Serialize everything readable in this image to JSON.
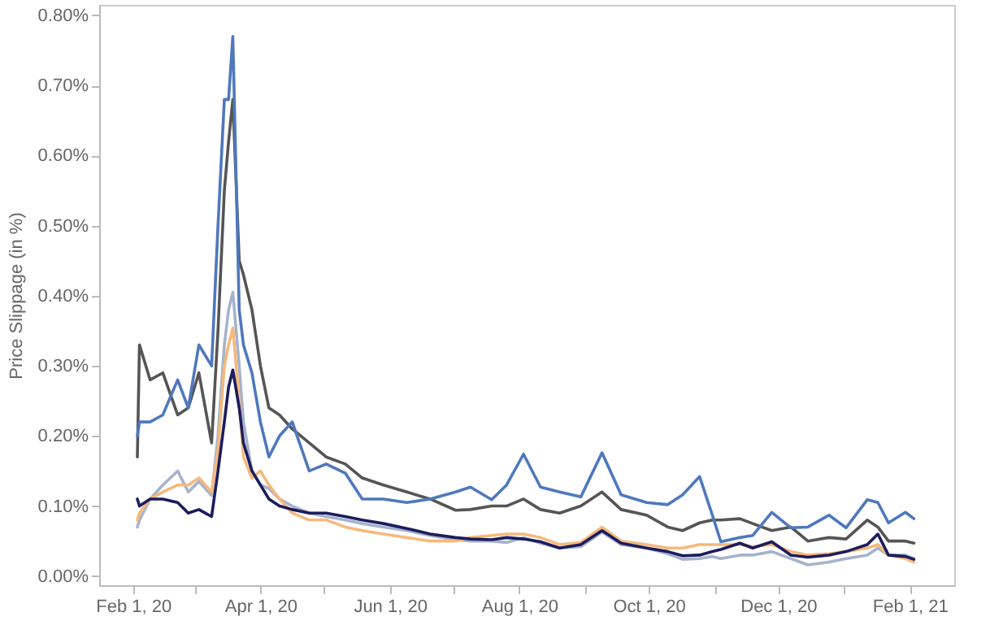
{
  "chart_data": {
    "type": "line",
    "ylabel": "Price Slippage (in %)",
    "x": [
      "2020-02-03",
      "2020-02-04",
      "2020-02-09",
      "2020-02-15",
      "2020-02-22",
      "2020-02-27",
      "2020-03-03",
      "2020-03-09",
      "2020-03-12",
      "2020-03-15",
      "2020-03-17",
      "2020-03-19",
      "2020-03-22",
      "2020-03-24",
      "2020-03-28",
      "2020-04-01",
      "2020-04-05",
      "2020-04-10",
      "2020-04-16",
      "2020-04-24",
      "2020-05-02",
      "2020-05-11",
      "2020-05-19",
      "2020-05-29",
      "2020-06-09",
      "2020-06-20",
      "2020-07-02",
      "2020-07-09",
      "2020-07-19",
      "2020-07-26",
      "2020-08-03",
      "2020-08-11",
      "2020-08-20",
      "2020-08-30",
      "2020-09-09",
      "2020-09-18",
      "2020-09-30",
      "2020-10-10",
      "2020-10-17",
      "2020-10-25",
      "2020-10-31",
      "2020-11-04",
      "2020-11-13",
      "2020-11-19",
      "2020-11-28",
      "2020-12-07",
      "2020-12-15",
      "2020-12-25",
      "2021-01-02",
      "2021-01-12",
      "2021-01-17",
      "2021-01-22",
      "2021-01-30",
      "2021-02-03"
    ],
    "series": [
      {
        "color": "#a5b3cc",
        "values": [
          0.07,
          0.08,
          0.11,
          0.13,
          0.15,
          0.12,
          0.135,
          0.115,
          0.2,
          0.33,
          0.38,
          0.405,
          0.3,
          0.22,
          0.15,
          0.13,
          0.125,
          0.11,
          0.1,
          0.09,
          0.085,
          0.08,
          0.075,
          0.07,
          0.065,
          0.058,
          0.052,
          0.05,
          0.05,
          0.048,
          0.055,
          0.047,
          0.04,
          0.042,
          0.063,
          0.045,
          0.04,
          0.032,
          0.024,
          0.025,
          0.028,
          0.025,
          0.03,
          0.03,
          0.035,
          0.025,
          0.016,
          0.02,
          0.025,
          0.03,
          0.04,
          0.03,
          0.03,
          0.025
        ]
      },
      {
        "color": "#f5b97c",
        "values": [
          0.08,
          0.09,
          0.11,
          0.12,
          0.13,
          0.13,
          0.14,
          0.12,
          0.18,
          0.3,
          0.33,
          0.354,
          0.25,
          0.17,
          0.14,
          0.15,
          0.13,
          0.11,
          0.09,
          0.08,
          0.08,
          0.07,
          0.065,
          0.06,
          0.055,
          0.05,
          0.05,
          0.055,
          0.058,
          0.06,
          0.06,
          0.055,
          0.045,
          0.048,
          0.07,
          0.05,
          0.045,
          0.04,
          0.04,
          0.045,
          0.045,
          0.045,
          0.045,
          0.042,
          0.045,
          0.035,
          0.03,
          0.032,
          0.035,
          0.04,
          0.045,
          0.03,
          0.025,
          0.02
        ]
      },
      {
        "color": "#1c1c5e",
        "values": [
          0.11,
          0.1,
          0.11,
          0.11,
          0.105,
          0.09,
          0.095,
          0.085,
          0.15,
          0.22,
          0.27,
          0.294,
          0.24,
          0.19,
          0.15,
          0.13,
          0.11,
          0.1,
          0.095,
          0.09,
          0.09,
          0.085,
          0.08,
          0.075,
          0.068,
          0.06,
          0.055,
          0.053,
          0.052,
          0.055,
          0.053,
          0.049,
          0.04,
          0.045,
          0.065,
          0.047,
          0.04,
          0.035,
          0.029,
          0.03,
          0.035,
          0.038,
          0.047,
          0.04,
          0.049,
          0.03,
          0.027,
          0.03,
          0.035,
          0.045,
          0.06,
          0.03,
          0.028,
          0.024
        ]
      },
      {
        "color": "#555555",
        "values": [
          0.17,
          0.33,
          0.28,
          0.29,
          0.23,
          0.24,
          0.29,
          0.19,
          0.35,
          0.55,
          0.62,
          0.68,
          0.45,
          0.43,
          0.38,
          0.3,
          0.24,
          0.23,
          0.21,
          0.19,
          0.17,
          0.16,
          0.14,
          0.13,
          0.12,
          0.11,
          0.094,
          0.095,
          0.1,
          0.1,
          0.11,
          0.095,
          0.09,
          0.1,
          0.12,
          0.095,
          0.087,
          0.07,
          0.065,
          0.076,
          0.08,
          0.08,
          0.082,
          0.075,
          0.065,
          0.07,
          0.05,
          0.055,
          0.053,
          0.08,
          0.07,
          0.05,
          0.05,
          0.047
        ]
      },
      {
        "color": "#4f78bd",
        "values": [
          0.2,
          0.22,
          0.22,
          0.23,
          0.28,
          0.24,
          0.33,
          0.3,
          0.5,
          0.68,
          0.68,
          0.77,
          0.38,
          0.33,
          0.29,
          0.22,
          0.17,
          0.2,
          0.22,
          0.15,
          0.16,
          0.147,
          0.11,
          0.11,
          0.105,
          0.11,
          0.12,
          0.127,
          0.109,
          0.13,
          0.174,
          0.127,
          0.12,
          0.113,
          0.176,
          0.116,
          0.105,
          0.102,
          0.116,
          0.142,
          0.087,
          0.049,
          0.055,
          0.058,
          0.091,
          0.069,
          0.07,
          0.087,
          0.069,
          0.109,
          0.105,
          0.076,
          0.091,
          0.082
        ]
      }
    ],
    "xlim": [
      "2020-01-16",
      "2021-02-22"
    ],
    "xticks": [
      {
        "value": "2020-02-01",
        "label": "Feb 1, 20"
      },
      {
        "value": "2020-03-01",
        "label": null
      },
      {
        "value": "2020-04-01",
        "label": "Apr 1, 20"
      },
      {
        "value": "2020-05-01",
        "label": null
      },
      {
        "value": "2020-06-01",
        "label": "Jun 1, 20"
      },
      {
        "value": "2020-07-01",
        "label": null
      },
      {
        "value": "2020-08-01",
        "label": "Aug 1, 20"
      },
      {
        "value": "2020-09-01",
        "label": null
      },
      {
        "value": "2020-10-01",
        "label": "Oct 1, 20"
      },
      {
        "value": "2020-11-01",
        "label": null
      },
      {
        "value": "2020-12-01",
        "label": "Dec 1, 20"
      },
      {
        "value": "2021-01-01",
        "label": null
      },
      {
        "value": "2021-02-01",
        "label": "Feb 1, 21"
      }
    ],
    "ylim": [
      -0.013,
      0.815
    ],
    "yticks": [
      {
        "value": 0,
        "label": "0.00%"
      },
      {
        "value": 0.1,
        "label": "0.10%"
      },
      {
        "value": 0.2,
        "label": "0.20%"
      },
      {
        "value": 0.3,
        "label": "0.30%"
      },
      {
        "value": 0.4,
        "label": "0.40%"
      },
      {
        "value": 0.5,
        "label": "0.50%"
      },
      {
        "value": 0.6,
        "label": "0.60%"
      },
      {
        "value": 0.7,
        "label": "0.70%"
      },
      {
        "value": 0.8,
        "label": "0.80%"
      }
    ],
    "grid": false,
    "marker": "none",
    "line_style": "solid"
  }
}
